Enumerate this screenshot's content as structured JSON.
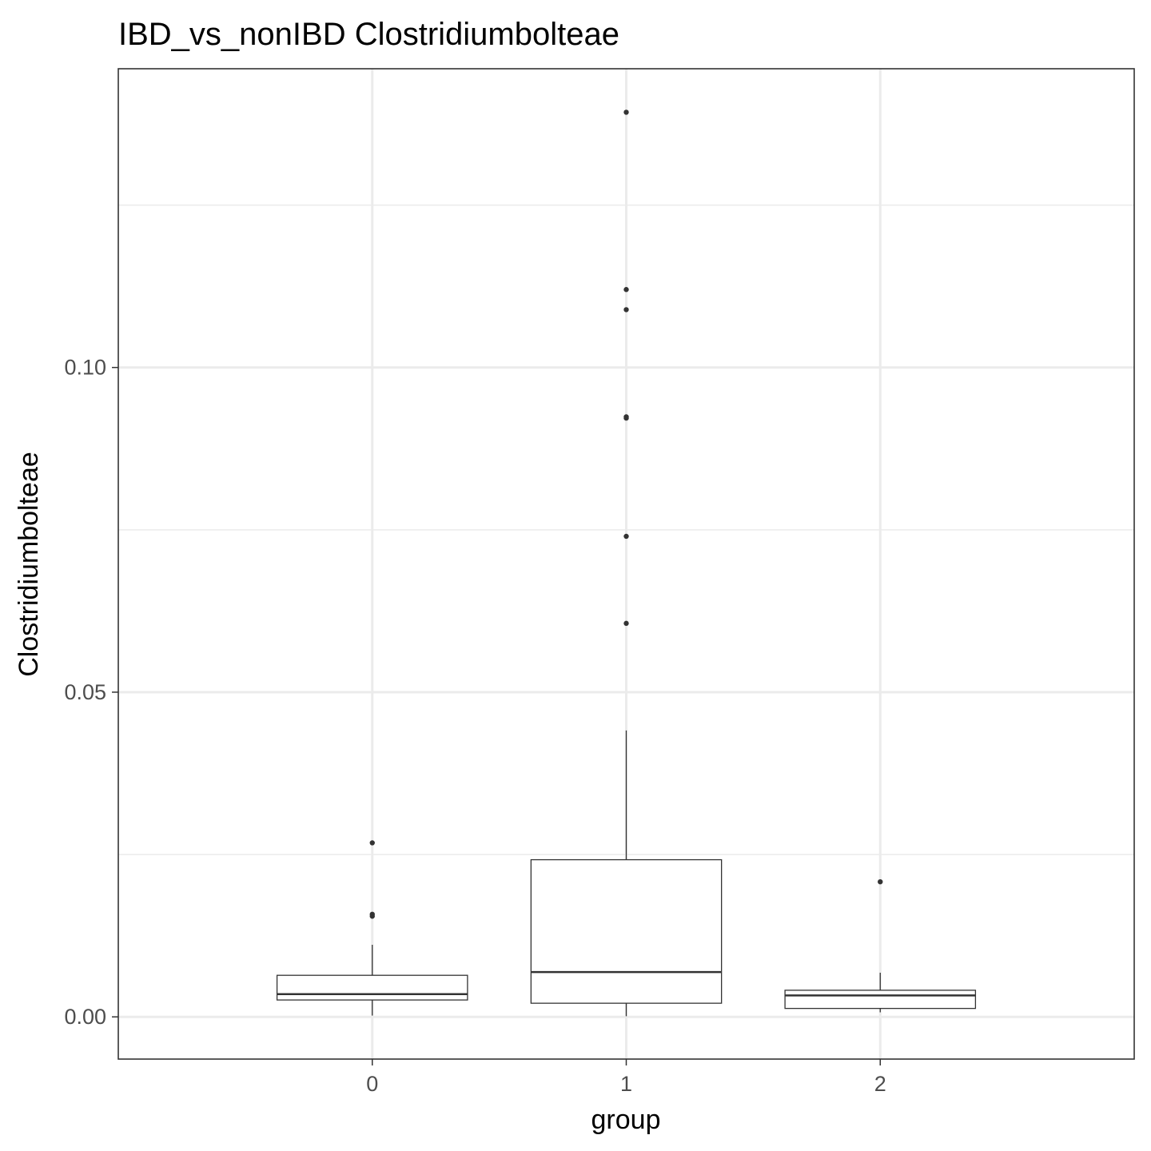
{
  "chart_data": {
    "type": "box",
    "title": "IBD_vs_nonIBD Clostridiumbolteae",
    "xlabel": "group",
    "ylabel": "Clostridiumbolteae",
    "categories": [
      "0",
      "1",
      "2"
    ],
    "x_tick_labels": [
      "0",
      "1",
      "2"
    ],
    "y_tick_labels": [
      "0.00",
      "0.05",
      "0.10"
    ],
    "y_ticks": [
      0.0,
      0.05,
      0.1
    ],
    "y_minor_ticks": [
      0.025,
      0.075,
      0.125
    ],
    "ylim": [
      -0.0065,
      0.146
    ],
    "grid": true,
    "theme": "bw",
    "colors": {
      "grid": "#ebebeb",
      "box": "#333333",
      "panel_border": "#333333",
      "background": "#ffffff"
    },
    "boxes": [
      {
        "category": "0",
        "whisker_low": 0.0002,
        "q1": 0.0026,
        "median": 0.0035,
        "q3": 0.0064,
        "whisker_high": 0.0111,
        "outliers": [
          0.0268,
          0.0158,
          0.0155
        ]
      },
      {
        "category": "1",
        "whisker_low": 0.0001,
        "q1": 0.0021,
        "median": 0.0069,
        "q3": 0.0242,
        "whisker_high": 0.0441,
        "outliers": [
          0.1393,
          0.112,
          0.1089,
          0.0924,
          0.0922,
          0.074,
          0.0606
        ]
      },
      {
        "category": "2",
        "whisker_low": 0.0007,
        "q1": 0.0013,
        "median": 0.0033,
        "q3": 0.0041,
        "whisker_high": 0.0068,
        "outliers": [
          0.0208
        ]
      }
    ]
  }
}
